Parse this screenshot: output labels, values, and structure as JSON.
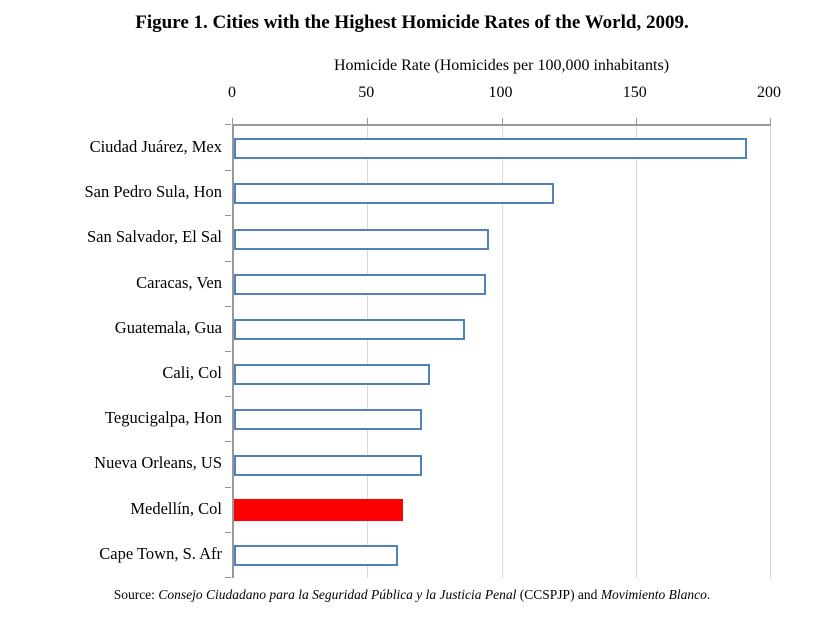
{
  "chart_data": {
    "type": "bar",
    "orientation": "horizontal",
    "title": "Figure 1. Cities with the Highest Homicide Rates of the World, 2009.",
    "xlabel": "Homicide Rate (Homicides per 100,000 inhabitants)",
    "ylabel": "",
    "categories": [
      "Ciudad Juárez, Mex",
      "San Pedro Sula, Hon",
      "San Salvador, El Sal",
      "Caracas, Ven",
      "Guatemala, Gua",
      "Cali, Col",
      "Tegucigalpa, Hon",
      "Nueva Orleans, US",
      "Medellín, Col",
      "Cape Town, S. Afr"
    ],
    "values": [
      191,
      119,
      95,
      94,
      86,
      73,
      70,
      70,
      63,
      61
    ],
    "xlim": [
      0,
      200
    ],
    "xticks": [
      0,
      50,
      100,
      150,
      200
    ],
    "grid": "vertical-gridlines-on",
    "legend": "none",
    "bar_fill_color": "#FFFFFF",
    "bar_border_color": "#4F81BD",
    "highlight_index": 8,
    "highlight_color": "#FE0000",
    "axis_color": "#999999",
    "gridline_color": "#D9D9D9",
    "source": "Source: Consejo Ciudadano para la Seguridad Pública y la Justicia Penal (CCSPJP) and Movimiento Blanco.",
    "source_segments": [
      {
        "text": "Source: ",
        "italic": false
      },
      {
        "text": "Consejo Ciudadano para la Seguridad Pública y la Justicia Penal",
        "italic": true
      },
      {
        "text": " (CCSPJP) and ",
        "italic": false
      },
      {
        "text": "Movimiento Blanco",
        "italic": true
      },
      {
        "text": ".",
        "italic": false
      }
    ]
  }
}
